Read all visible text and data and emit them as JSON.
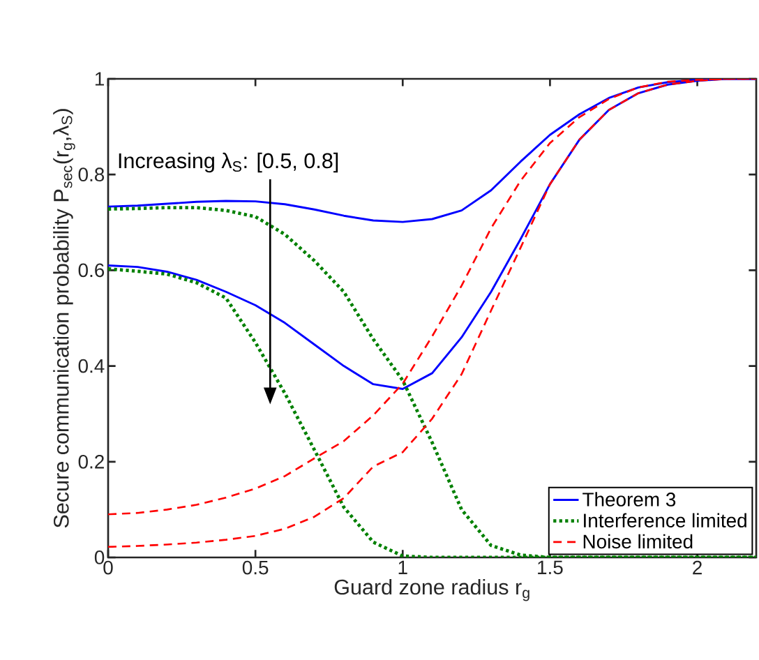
{
  "chart_data": {
    "type": "line",
    "xlabel": "Guard zone radius r$_{g}$",
    "ylabel": "Secure communication probability P$_{sec}$(r$_{g}$,λ$_{S}$)",
    "annotations": [
      "Increasing λ$_{S}$: [0.5, 0.8]"
    ],
    "x": [
      0,
      0.1,
      0.2,
      0.3,
      0.4,
      0.5,
      0.6,
      0.7,
      0.8,
      0.9,
      1.0,
      1.1,
      1.2,
      1.3,
      1.4,
      1.5,
      1.6,
      1.7,
      1.8,
      1.9,
      2.0,
      2.1,
      2.2
    ],
    "series": [
      {
        "name": "Theorem 3",
        "color": "#0000ff",
        "line_style": "solid",
        "values": [
          0.733,
          0.735,
          0.739,
          0.743,
          0.745,
          0.744,
          0.738,
          0.727,
          0.714,
          0.704,
          0.701,
          0.707,
          0.725,
          0.767,
          0.827,
          0.883,
          0.926,
          0.96,
          0.982,
          0.993,
          0.998,
          1,
          1
        ]
      },
      {
        "color": "#0000ff",
        "line_style": "solid",
        "values": [
          0.61,
          0.607,
          0.597,
          0.58,
          0.555,
          0.527,
          0.49,
          0.445,
          0.4,
          0.362,
          0.352,
          0.385,
          0.46,
          0.555,
          0.665,
          0.78,
          0.873,
          0.935,
          0.97,
          0.988,
          0.996,
          1,
          1
        ]
      },
      {
        "name": "Interference limited",
        "color": "#008000",
        "line_style": "dotted",
        "values": [
          0.728,
          0.729,
          0.731,
          0.731,
          0.725,
          0.712,
          0.675,
          0.62,
          0.555,
          0.456,
          0.37,
          0.24,
          0.1,
          0.025,
          0.005,
          0,
          0,
          0,
          0,
          0,
          0,
          0,
          0
        ]
      },
      {
        "color": "#008000",
        "line_style": "dotted",
        "values": [
          0.603,
          0.598,
          0.592,
          0.574,
          0.542,
          0.449,
          0.343,
          0.225,
          0.105,
          0.032,
          0.003,
          0,
          0,
          0,
          0,
          0,
          0,
          0,
          0,
          0,
          0,
          0,
          0
        ]
      },
      {
        "name": "Noise limited",
        "color": "#ff0000",
        "line_style": "dashed",
        "values": [
          0.09,
          0.093,
          0.1,
          0.11,
          0.125,
          0.144,
          0.17,
          0.207,
          0.243,
          0.297,
          0.363,
          0.462,
          0.568,
          0.688,
          0.787,
          0.866,
          0.92,
          0.958,
          0.982,
          0.994,
          0.998,
          1,
          1
        ]
      },
      {
        "color": "#ff0000",
        "line_style": "dashed",
        "values": [
          0.022,
          0.024,
          0.027,
          0.031,
          0.037,
          0.045,
          0.06,
          0.085,
          0.124,
          0.19,
          0.22,
          0.29,
          0.383,
          0.516,
          0.647,
          0.78,
          0.873,
          0.935,
          0.97,
          0.988,
          0.996,
          1,
          1
        ]
      }
    ],
    "xlim": [
      0,
      2.2
    ],
    "ylim": [
      0,
      1
    ],
    "xticks": [
      0,
      0.5,
      1,
      1.5,
      2
    ],
    "yticks": [
      0,
      0.2,
      0.4,
      0.6,
      0.8,
      1
    ],
    "grid": false,
    "legend": "bottom right",
    "marker": "none"
  }
}
